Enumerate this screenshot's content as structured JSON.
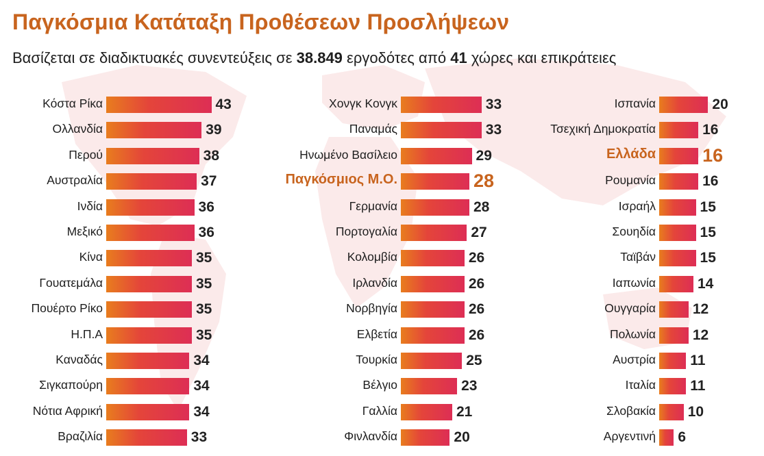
{
  "header": {
    "title": "Παγκόσμια Κατάταξη Προθέσεων Προσλήψεων",
    "subtitle_part1": "Βασίζεται σε διαδικτυακές συνεντεύξεις σε ",
    "subtitle_employers": "38.849",
    "subtitle_part2": " εργοδότες από ",
    "subtitle_countries": "41",
    "subtitle_part3": " χώρες και επικράτειες"
  },
  "colors": {
    "accent": "#c8641e",
    "bar_start": "#e87d1e",
    "bar_end": "#dd2e55",
    "text": "#1e1e1e"
  },
  "chart_data": {
    "type": "bar",
    "orientation": "horizontal",
    "title": "Παγκόσμια Κατάταξη Προθέσεων Προσλήψεων",
    "xlim": [
      0,
      43
    ],
    "grid": false,
    "columns": [
      {
        "categories": [
          "Κόστα Ρίκα",
          "Ολλανδία",
          "Περού",
          "Αυστραλία",
          "Ινδία",
          "Μεξικό",
          "Κίνα",
          "Γουατεμάλα",
          "Πουέρτο Ρίκο",
          "Η.Π.Α",
          "Καναδάς",
          "Σιγκαπούρη",
          "Νότια Αφρική",
          "Βραζιλία"
        ],
        "values": [
          43,
          39,
          38,
          37,
          36,
          36,
          35,
          35,
          35,
          35,
          34,
          34,
          34,
          33
        ],
        "highlight": []
      },
      {
        "categories": [
          "Χονγκ Κονγκ",
          "Παναμάς",
          "Ηνωμένο Βασίλειο",
          "Παγκόσμιος Μ.Ο.",
          "Γερμανία",
          "Πορτογαλία",
          "Κολομβία",
          "Ιρλανδία",
          "Νορβηγία",
          "Ελβετία",
          "Τουρκία",
          "Βέλγιο",
          "Γαλλία",
          "Φινλανδία"
        ],
        "values": [
          33,
          33,
          29,
          28,
          28,
          27,
          26,
          26,
          26,
          26,
          25,
          23,
          21,
          20
        ],
        "highlight": [
          "Παγκόσμιος Μ.Ο."
        ]
      },
      {
        "categories": [
          "Ισπανία",
          "Τσεχική Δημοκρατία",
          "Ελλάδα",
          "Ρουμανία",
          "Ισραήλ",
          "Σουηδία",
          "Ταϊβάν",
          "Ιαπωνία",
          "Ουγγαρία",
          "Πολωνία",
          "Αυστρία",
          "Ιταλία",
          "Σλοβακία",
          "Αργεντινή"
        ],
        "values": [
          20,
          16,
          16,
          16,
          15,
          15,
          15,
          14,
          12,
          12,
          11,
          11,
          10,
          6
        ],
        "highlight": [
          "Ελλάδα"
        ]
      }
    ]
  }
}
